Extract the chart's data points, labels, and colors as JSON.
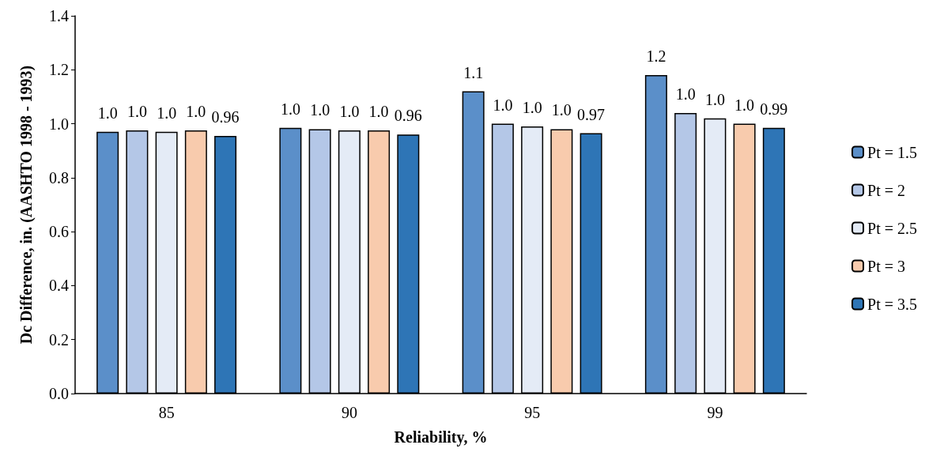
{
  "chart_data": {
    "type": "bar",
    "xlabel": "Reliability, %",
    "ylabel": "Dc Difference, in. (AASHTO 1998 - 1993)",
    "categories": [
      "85",
      "90",
      "95",
      "99"
    ],
    "series": [
      {
        "name": "Pt = 1.5",
        "color": "#5b8fc9",
        "values": [
          0.97,
          0.985,
          1.12,
          1.18
        ],
        "value_labels": [
          "1.0",
          "1.0",
          "1.1",
          "1.2"
        ]
      },
      {
        "name": "Pt = 2",
        "color": "#b4c7e7",
        "values": [
          0.975,
          0.98,
          1.0,
          1.04
        ],
        "value_labels": [
          "1.0",
          "1.0",
          "1.0",
          "1.0"
        ]
      },
      {
        "name": "Pt = 2.5",
        "color": "#e4ebf6",
        "values": [
          0.97,
          0.975,
          0.99,
          1.02
        ],
        "value_labels": [
          "1.0",
          "1.0",
          "1.0",
          "1.0"
        ]
      },
      {
        "name": "Pt = 3",
        "color": "#f8cbad",
        "values": [
          0.975,
          0.975,
          0.98,
          1.0
        ],
        "value_labels": [
          "1.0",
          "1.0",
          "1.0",
          "1.0"
        ]
      },
      {
        "name": "Pt = 3.5",
        "color": "#2e75b6",
        "values": [
          0.955,
          0.96,
          0.965,
          0.985
        ],
        "value_labels": [
          "0.96",
          "0.96",
          "0.97",
          "0.99"
        ]
      }
    ],
    "ylim": [
      0,
      1.4
    ],
    "yticks": [
      {
        "value": 0,
        "label": "0.0"
      },
      {
        "value": 0.2,
        "label": "0.2"
      },
      {
        "value": 0.4,
        "label": "0.4"
      },
      {
        "value": 0.6,
        "label": "0.6"
      },
      {
        "value": 0.8,
        "label": "0.8"
      },
      {
        "value": 1,
        "label": "1.0"
      },
      {
        "value": 1.2,
        "label": "1.2"
      },
      {
        "value": 1.4,
        "label": "1.4"
      }
    ],
    "grid": false,
    "legend": "right"
  }
}
